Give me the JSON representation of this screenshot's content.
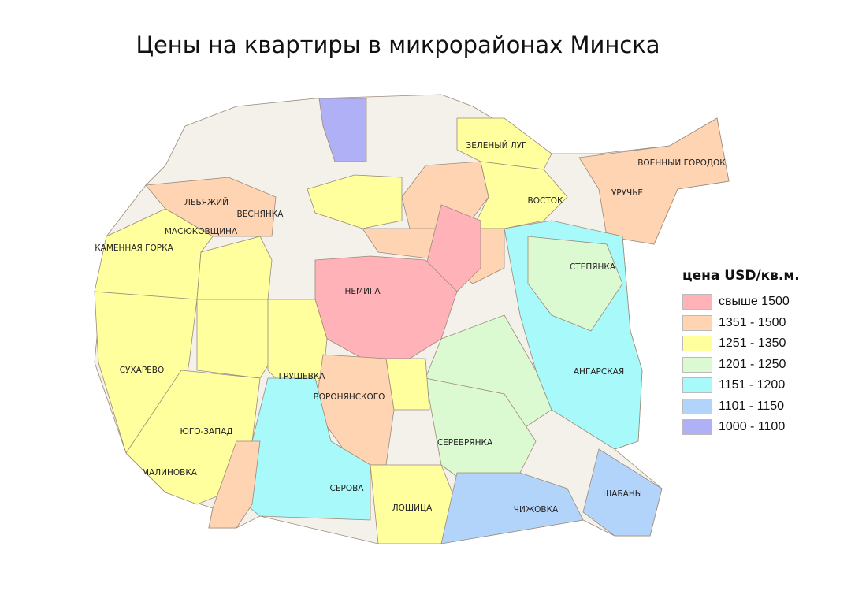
{
  "title": "Цены на квартиры в микрорайонах Минска",
  "legend": {
    "title": "цена USD/кв.м.",
    "items": [
      {
        "label": "свыше 1500",
        "color": "#ffb3b8"
      },
      {
        "label": "1351 - 1500",
        "color": "#ffd4b3"
      },
      {
        "label": "1251 - 1350",
        "color": "#ffff9e"
      },
      {
        "label": "1201 - 1250",
        "color": "#dcfad2"
      },
      {
        "label": "1151 - 1200",
        "color": "#a8fafa"
      },
      {
        "label": "1101 - 1150",
        "color": "#b3d4fa"
      },
      {
        "label": "1000 - 1100",
        "color": "#b0b0f7"
      }
    ]
  },
  "districts": [
    {
      "name": "НЕМИГА",
      "category": 0
    },
    {
      "name": "ЗЕЛЕНЫЙ ЛУГ",
      "category": 2
    },
    {
      "name": "ВОСТОК",
      "category": 2
    },
    {
      "name": "УРУЧЬЕ",
      "category": 1
    },
    {
      "name": "ВОЕННЫЙ ГОРОДОК",
      "category": 1
    },
    {
      "name": "ЛЕБЯЖИЙ",
      "category": 1
    },
    {
      "name": "ВЕСНЯНКА",
      "category": 1
    },
    {
      "name": "МАСЮКОВЩИНА",
      "category": 2
    },
    {
      "name": "КАМЕННАЯ ГОРКА",
      "category": 2
    },
    {
      "name": "СТЕПЯНКА",
      "category": 3
    },
    {
      "name": "СУХАРЕВО",
      "category": 2
    },
    {
      "name": "ГРУШЕВКА",
      "category": 2
    },
    {
      "name": "ВОРОНЯНСКОГО",
      "category": 1
    },
    {
      "name": "АНГАРСКАЯ",
      "category": 4
    },
    {
      "name": "ЮГО-ЗАПАД",
      "category": 2
    },
    {
      "name": "СЕРЕБРЯНКА",
      "category": 3
    },
    {
      "name": "МАЛИНОВКА",
      "category": 2
    },
    {
      "name": "СЕРОВА",
      "category": 4
    },
    {
      "name": "ЛОШИЦА",
      "category": 2
    },
    {
      "name": "ЧИЖОВКА",
      "category": 5
    },
    {
      "name": "ШАБАНЫ",
      "category": 5
    }
  ]
}
